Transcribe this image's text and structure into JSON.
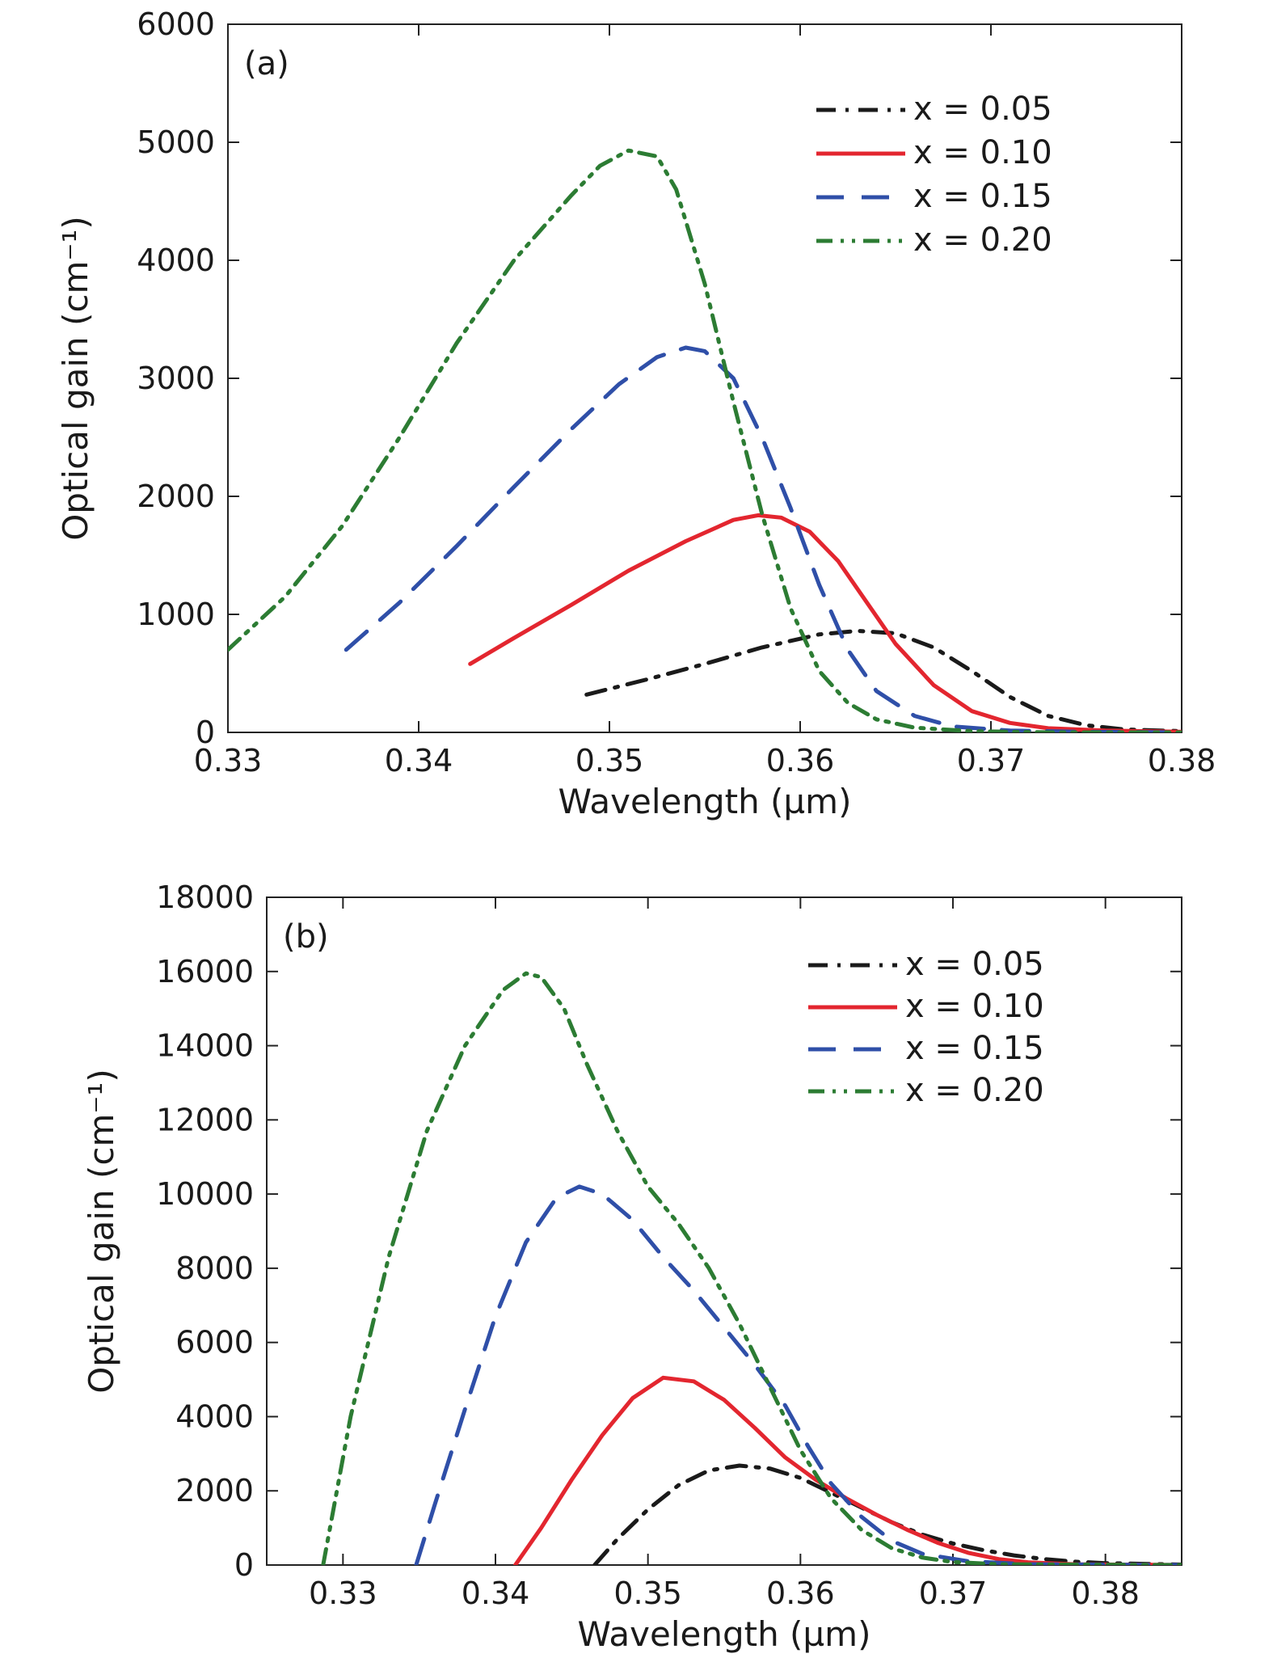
{
  "chart_data": [
    {
      "type": "line",
      "panel_label": "(a)",
      "xlabel": "Wavelength (µm)",
      "ylabel": "Optical gain (cm⁻¹)",
      "xlim": [
        0.33,
        0.38
      ],
      "ylim": [
        0,
        6000
      ],
      "xticks": [
        0.33,
        0.34,
        0.35,
        0.36,
        0.37,
        0.38
      ],
      "xtick_labels": [
        "0.33",
        "0.34",
        "0.35",
        "0.36",
        "0.37",
        "0.38"
      ],
      "yticks": [
        0,
        1000,
        2000,
        3000,
        4000,
        5000,
        6000
      ],
      "ytick_labels": [
        "0",
        "1000",
        "2000",
        "3000",
        "4000",
        "5000",
        "6000"
      ],
      "legend_position": "top-right",
      "grid": false,
      "series": [
        {
          "name": "x = 0.05",
          "color": "#1a1a1a",
          "dash": "dashdot",
          "points": [
            [
              0.3488,
              320
            ],
            [
              0.352,
              450
            ],
            [
              0.355,
              580
            ],
            [
              0.358,
              720
            ],
            [
              0.361,
              830
            ],
            [
              0.363,
              860
            ],
            [
              0.365,
              840
            ],
            [
              0.367,
              720
            ],
            [
              0.369,
              520
            ],
            [
              0.371,
              300
            ],
            [
              0.373,
              140
            ],
            [
              0.375,
              60
            ],
            [
              0.377,
              25
            ],
            [
              0.38,
              10
            ]
          ]
        },
        {
          "name": "x = 0.10",
          "color": "#e3262f",
          "dash": "solid",
          "points": [
            [
              0.3427,
              580
            ],
            [
              0.345,
              800
            ],
            [
              0.348,
              1080
            ],
            [
              0.351,
              1370
            ],
            [
              0.354,
              1620
            ],
            [
              0.3565,
              1800
            ],
            [
              0.3578,
              1840
            ],
            [
              0.359,
              1820
            ],
            [
              0.3605,
              1700
            ],
            [
              0.362,
              1450
            ],
            [
              0.3635,
              1100
            ],
            [
              0.365,
              750
            ],
            [
              0.367,
              400
            ],
            [
              0.369,
              180
            ],
            [
              0.371,
              80
            ],
            [
              0.373,
              35
            ],
            [
              0.376,
              15
            ],
            [
              0.38,
              5
            ]
          ]
        },
        {
          "name": "x = 0.15",
          "color": "#2f4fa8",
          "dash": "dashed",
          "points": [
            [
              0.3362,
              700
            ],
            [
              0.339,
              1100
            ],
            [
              0.342,
              1580
            ],
            [
              0.345,
              2080
            ],
            [
              0.348,
              2570
            ],
            [
              0.3505,
              2950
            ],
            [
              0.3525,
              3180
            ],
            [
              0.354,
              3260
            ],
            [
              0.355,
              3230
            ],
            [
              0.3565,
              3000
            ],
            [
              0.358,
              2500
            ],
            [
              0.3595,
              1900
            ],
            [
              0.361,
              1250
            ],
            [
              0.3625,
              700
            ],
            [
              0.364,
              350
            ],
            [
              0.366,
              140
            ],
            [
              0.368,
              50
            ],
            [
              0.371,
              15
            ],
            [
              0.375,
              5
            ],
            [
              0.38,
              0
            ]
          ]
        },
        {
          "name": "x = 0.20",
          "color": "#2c7c33",
          "dash": "dashdotdot",
          "points": [
            [
              0.33,
              700
            ],
            [
              0.333,
              1150
            ],
            [
              0.336,
              1750
            ],
            [
              0.339,
              2500
            ],
            [
              0.342,
              3300
            ],
            [
              0.345,
              4000
            ],
            [
              0.348,
              4550
            ],
            [
              0.3495,
              4800
            ],
            [
              0.351,
              4930
            ],
            [
              0.3525,
              4880
            ],
            [
              0.3535,
              4600
            ],
            [
              0.355,
              3800
            ],
            [
              0.3565,
              2800
            ],
            [
              0.358,
              1850
            ],
            [
              0.3595,
              1050
            ],
            [
              0.361,
              520
            ],
            [
              0.3625,
              250
            ],
            [
              0.364,
              110
            ],
            [
              0.366,
              40
            ],
            [
              0.369,
              10
            ],
            [
              0.373,
              0
            ],
            [
              0.38,
              0
            ]
          ]
        }
      ]
    },
    {
      "type": "line",
      "panel_label": "(b)",
      "xlabel": "Wavelength (µm)",
      "ylabel": "Optical gain (cm⁻¹)",
      "xlim": [
        0.325,
        0.385
      ],
      "ylim": [
        0,
        18000
      ],
      "xticks": [
        0.33,
        0.34,
        0.35,
        0.36,
        0.37,
        0.38
      ],
      "xtick_labels": [
        "0.33",
        "0.34",
        "0.35",
        "0.36",
        "0.37",
        "0.38"
      ],
      "yticks": [
        0,
        2000,
        4000,
        6000,
        8000,
        10000,
        12000,
        14000,
        16000,
        18000
      ],
      "ytick_labels": [
        "0",
        "2000",
        "4000",
        "6000",
        "8000",
        "10000",
        "12000",
        "14000",
        "16000",
        "18000"
      ],
      "legend_position": "top-right",
      "grid": false,
      "series": [
        {
          "name": "x = 0.05",
          "color": "#1a1a1a",
          "dash": "dashdot",
          "points": [
            [
              0.3465,
              0
            ],
            [
              0.348,
              700
            ],
            [
              0.35,
              1500
            ],
            [
              0.352,
              2150
            ],
            [
              0.354,
              2550
            ],
            [
              0.356,
              2680
            ],
            [
              0.358,
              2600
            ],
            [
              0.36,
              2350
            ],
            [
              0.362,
              1950
            ],
            [
              0.364,
              1550
            ],
            [
              0.366,
              1150
            ],
            [
              0.368,
              820
            ],
            [
              0.37,
              580
            ],
            [
              0.372,
              400
            ],
            [
              0.374,
              260
            ],
            [
              0.376,
              160
            ],
            [
              0.378,
              90
            ],
            [
              0.38,
              50
            ],
            [
              0.385,
              10
            ]
          ]
        },
        {
          "name": "x = 0.10",
          "color": "#e3262f",
          "dash": "solid",
          "points": [
            [
              0.3413,
              0
            ],
            [
              0.343,
              1000
            ],
            [
              0.345,
              2300
            ],
            [
              0.347,
              3500
            ],
            [
              0.349,
              4500
            ],
            [
              0.351,
              5050
            ],
            [
              0.353,
              4950
            ],
            [
              0.355,
              4450
            ],
            [
              0.357,
              3700
            ],
            [
              0.359,
              2900
            ],
            [
              0.361,
              2300
            ],
            [
              0.363,
              1800
            ],
            [
              0.365,
              1350
            ],
            [
              0.367,
              950
            ],
            [
              0.369,
              600
            ],
            [
              0.371,
              330
            ],
            [
              0.373,
              160
            ],
            [
              0.375,
              70
            ],
            [
              0.378,
              20
            ],
            [
              0.385,
              0
            ]
          ]
        },
        {
          "name": "x = 0.15",
          "color": "#2f4fa8",
          "dash": "dashed",
          "points": [
            [
              0.3348,
              0
            ],
            [
              0.336,
              1600
            ],
            [
              0.338,
              4200
            ],
            [
              0.34,
              6700
            ],
            [
              0.342,
              8700
            ],
            [
              0.344,
              9900
            ],
            [
              0.3455,
              10200
            ],
            [
              0.347,
              10000
            ],
            [
              0.349,
              9300
            ],
            [
              0.351,
              8300
            ],
            [
              0.353,
              7400
            ],
            [
              0.355,
              6400
            ],
            [
              0.357,
              5400
            ],
            [
              0.359,
              4300
            ],
            [
              0.3605,
              3200
            ],
            [
              0.362,
              2200
            ],
            [
              0.364,
              1300
            ],
            [
              0.366,
              650
            ],
            [
              0.368,
              300
            ],
            [
              0.371,
              100
            ],
            [
              0.375,
              20
            ],
            [
              0.385,
              0
            ]
          ]
        },
        {
          "name": "x = 0.20",
          "color": "#2c7c33",
          "dash": "dashdotdot",
          "points": [
            [
              0.3287,
              0
            ],
            [
              0.3305,
              4000
            ],
            [
              0.333,
              8300
            ],
            [
              0.3355,
              11700
            ],
            [
              0.338,
              14000
            ],
            [
              0.3405,
              15500
            ],
            [
              0.342,
              15950
            ],
            [
              0.343,
              15850
            ],
            [
              0.3445,
              15000
            ],
            [
              0.346,
              13500
            ],
            [
              0.348,
              11700
            ],
            [
              0.35,
              10200
            ],
            [
              0.352,
              9200
            ],
            [
              0.354,
              8000
            ],
            [
              0.356,
              6500
            ],
            [
              0.358,
              4800
            ],
            [
              0.36,
              3100
            ],
            [
              0.362,
              1800
            ],
            [
              0.364,
              950
            ],
            [
              0.366,
              450
            ],
            [
              0.368,
              200
            ],
            [
              0.37,
              80
            ],
            [
              0.373,
              20
            ],
            [
              0.385,
              0
            ]
          ]
        }
      ]
    }
  ]
}
